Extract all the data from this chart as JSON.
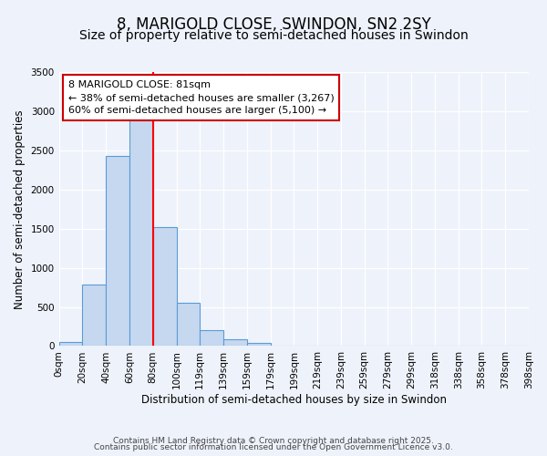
{
  "title": "8, MARIGOLD CLOSE, SWINDON, SN2 2SY",
  "subtitle": "Size of property relative to semi-detached houses in Swindon",
  "xlabel": "Distribution of semi-detached houses by size in Swindon",
  "ylabel": "Number of semi-detached properties",
  "bin_labels": [
    "0sqm",
    "20sqm",
    "40sqm",
    "60sqm",
    "80sqm",
    "100sqm",
    "119sqm",
    "139sqm",
    "159sqm",
    "179sqm",
    "199sqm",
    "219sqm",
    "239sqm",
    "259sqm",
    "279sqm",
    "299sqm",
    "318sqm",
    "338sqm",
    "358sqm",
    "378sqm"
  ],
  "bar_values": [
    50,
    780,
    2430,
    2890,
    1520,
    550,
    200,
    90,
    40,
    5,
    2,
    1,
    0,
    0,
    0,
    0,
    0,
    0,
    0,
    0
  ],
  "bar_color": "#c5d8f0",
  "bar_edge_color": "#5b9bd5",
  "red_line_x": 4,
  "annotation_title": "8 MARIGOLD CLOSE: 81sqm",
  "annotation_line1": "← 38% of semi-detached houses are smaller (3,267)",
  "annotation_line2": "60% of semi-detached houses are larger (5,100) →",
  "annotation_box_color": "#ffffff",
  "annotation_box_edge": "#cc0000",
  "ylim": [
    0,
    3500
  ],
  "yticks": [
    0,
    500,
    1000,
    1500,
    2000,
    2500,
    3000,
    3500
  ],
  "background_color": "#eef2fb",
  "footer1": "Contains HM Land Registry data © Crown copyright and database right 2025.",
  "footer2": "Contains public sector information licensed under the Open Government Licence v3.0.",
  "title_fontsize": 12,
  "subtitle_fontsize": 10,
  "axis_label_fontsize": 8.5,
  "tick_fontsize": 7.5,
  "annotation_fontsize": 8,
  "footer_fontsize": 6.5
}
